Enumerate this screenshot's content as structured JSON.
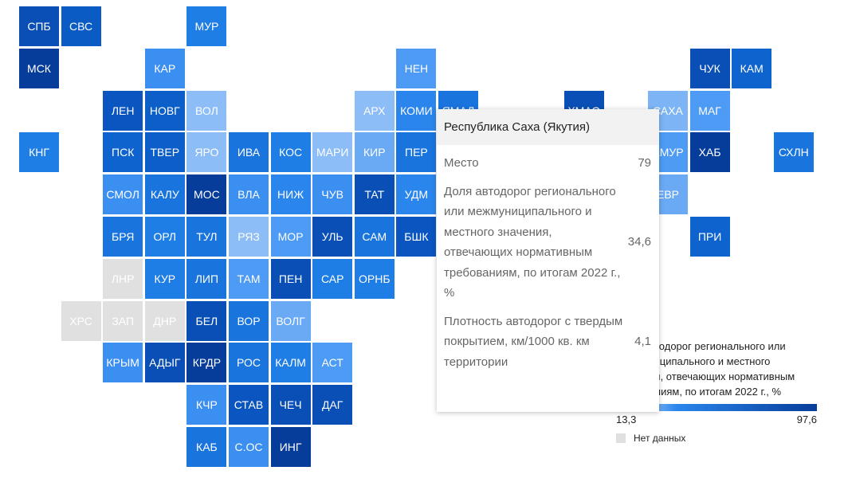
{
  "tiles": [
    {
      "label": "СПБ",
      "color": "#0a4fb5"
    },
    {
      "label": "СВС",
      "color": "#0a5cc4"
    },
    {
      "label": "МУР",
      "color": "#1f7de6"
    },
    {
      "label": "МСК",
      "color": "#073d9a"
    },
    {
      "label": "КАР",
      "color": "#3b8ff0"
    },
    {
      "label": "НЕН",
      "color": "#4d9bf5"
    },
    {
      "label": "ЧУК",
      "color": "#0a4fb5"
    },
    {
      "label": "КАМ",
      "color": "#0e63cf"
    },
    {
      "label": "ЛЕН",
      "color": "#0a55bf"
    },
    {
      "label": "НОВГ",
      "color": "#0c5ec8"
    },
    {
      "label": "ВОЛ",
      "color": "#8cbdf7"
    },
    {
      "label": "АРХ",
      "color": "#8cbdf7"
    },
    {
      "label": "КОМИ",
      "color": "#2a86ec"
    },
    {
      "label": "ЯМАЛ",
      "color": "#1a74de"
    },
    {
      "label": "ХМАО",
      "color": "#0a4fb5"
    },
    {
      "label": "САХА",
      "color": "#7cb4f5"
    },
    {
      "label": "МАГ",
      "color": "#4d9bf5"
    },
    {
      "label": "КНГ",
      "color": "#1f7de6"
    },
    {
      "label": "ПСК",
      "color": "#0e63cf"
    },
    {
      "label": "ТВЕР",
      "color": "#0c5ec8"
    },
    {
      "label": "ЯРО",
      "color": "#8cbdf7"
    },
    {
      "label": "ИВА",
      "color": "#1a74de"
    },
    {
      "label": "КОС",
      "color": "#1f7de6"
    },
    {
      "label": "МАРИ",
      "color": "#8cbdf7"
    },
    {
      "label": "КИР",
      "color": "#6aa9f3"
    },
    {
      "label": "ПЕР",
      "color": "#1a74de"
    },
    {
      "label": "АМУР",
      "color": "#4d9bf5"
    },
    {
      "label": "ХАБ",
      "color": "#073d9a"
    },
    {
      "label": "СХЛН",
      "color": "#1a74de"
    },
    {
      "label": "СМОЛ",
      "color": "#3b8ff0"
    },
    {
      "label": "КАЛУ",
      "color": "#1a74de"
    },
    {
      "label": "МОС",
      "color": "#073d9a"
    },
    {
      "label": "ВЛА",
      "color": "#3b8ff0"
    },
    {
      "label": "НИЖ",
      "color": "#2a86ec"
    },
    {
      "label": "ЧУВ",
      "color": "#3b8ff0"
    },
    {
      "label": "ТАТ",
      "color": "#0a4fb5"
    },
    {
      "label": "УДМ",
      "color": "#2a86ec"
    },
    {
      "label": "ЕВР",
      "color": "#6aa9f3"
    },
    {
      "label": "БРЯ",
      "color": "#1a74de"
    },
    {
      "label": "ОРЛ",
      "color": "#1f7de6"
    },
    {
      "label": "ТУЛ",
      "color": "#1a74de"
    },
    {
      "label": "РЯЗ",
      "color": "#8cbdf7"
    },
    {
      "label": "МОР",
      "color": "#4d9bf5"
    },
    {
      "label": "УЛЬ",
      "color": "#0a4fb5"
    },
    {
      "label": "САМ",
      "color": "#1a74de"
    },
    {
      "label": "БШК",
      "color": "#0a55bf"
    },
    {
      "label": "ПРИ",
      "color": "#0e63cf"
    },
    {
      "label": "ЛНР",
      "color": "#e0e0e0"
    },
    {
      "label": "КУР",
      "color": "#1f7de6"
    },
    {
      "label": "ЛИП",
      "color": "#1a74de"
    },
    {
      "label": "ТАМ",
      "color": "#4d9bf5"
    },
    {
      "label": "ПЕН",
      "color": "#0a4fb5"
    },
    {
      "label": "САР",
      "color": "#1f7de6"
    },
    {
      "label": "ОРНБ",
      "color": "#1f7de6"
    },
    {
      "label": "ХРС",
      "color": "#e0e0e0"
    },
    {
      "label": "ЗАП",
      "color": "#e0e0e0"
    },
    {
      "label": "ДНР",
      "color": "#e0e0e0"
    },
    {
      "label": "БЕЛ",
      "color": "#0a4fb5"
    },
    {
      "label": "ВОР",
      "color": "#1a74de"
    },
    {
      "label": "ВОЛГ",
      "color": "#6aa9f3"
    },
    {
      "label": "КРЫМ",
      "color": "#3b8ff0"
    },
    {
      "label": "АДЫГ",
      "color": "#0a4fb5"
    },
    {
      "label": "КРДР",
      "color": "#073d9a"
    },
    {
      "label": "РОС",
      "color": "#1a74de"
    },
    {
      "label": "КАЛМ",
      "color": "#1f7de6"
    },
    {
      "label": "АСТ",
      "color": "#4d9bf5"
    },
    {
      "label": "КЧР",
      "color": "#3b8ff0"
    },
    {
      "label": "СТАВ",
      "color": "#0a55bf"
    },
    {
      "label": "ЧЕЧ",
      "color": "#0a4fb5"
    },
    {
      "label": "ДАГ",
      "color": "#0a4fb5"
    },
    {
      "label": "КАБ",
      "color": "#1a74de"
    },
    {
      "label": "С.ОС",
      "color": "#3b8ff0"
    },
    {
      "label": "ИНГ",
      "color": "#073d9a"
    }
  ],
  "tooltip": {
    "title": "Республика Саха (Якутия)",
    "rows": [
      {
        "label": "Место",
        "value": "79"
      },
      {
        "label": "Доля автодорог регионального или межмуниципального и местного значения, отвечающих нормативным требованиям, по итогам 2022 г., %",
        "value": "34,6"
      },
      {
        "label": "Плотность автодорог с твердым покрытием, км/1000 кв. км территории",
        "value": "4,1"
      }
    ]
  },
  "legend": {
    "title": "Доля автодорог регионального или межмуниципального и местного значения, отвечающих нормативным требованиям, по итогам 2022 г., %",
    "min": "13,3",
    "max": "97,6",
    "no_data": "Нет данных"
  }
}
